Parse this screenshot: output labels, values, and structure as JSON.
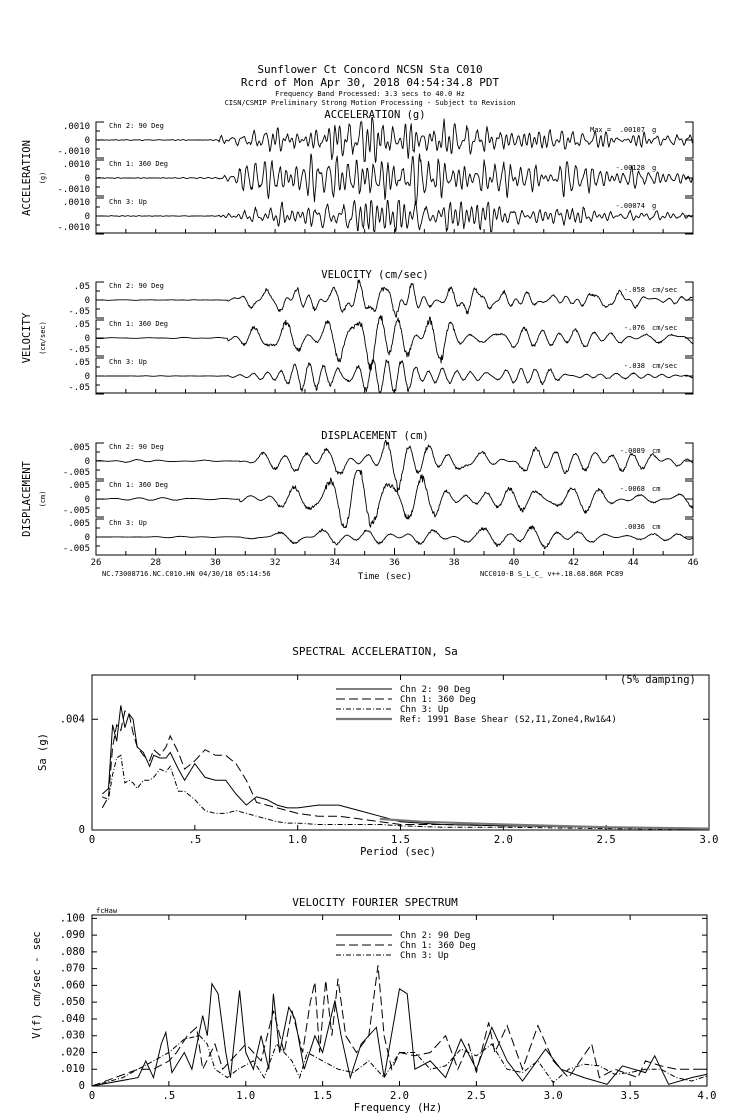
{
  "header": {
    "line1": "Sunflower Ct Concord    NCSN Sta C010",
    "line2": "Rcrd of Mon Apr 30, 2018 04:54:34.8 PDT",
    "line3": "Frequency Band Processed: 3.3 secs to 40.0 Hz",
    "line4": "CISN/CSMIP Preliminary Strong Motion Processing - Subject to Revision"
  },
  "time_axis": {
    "xlim": [
      26,
      46
    ],
    "tick_labels": [
      "26",
      "28",
      "30",
      "32",
      "34",
      "36",
      "38",
      "40",
      "42",
      "44",
      "46"
    ],
    "xlabel": "Time (sec)",
    "footer_left": "NC.73008716.NC.C010.HN 04/30/18 05:14:56",
    "footer_right": "NCC010-B  S_L_C_  v++.18.68.86R PC89"
  },
  "sections": [
    {
      "title": "ACCELERATION (g)",
      "ylabel": "ACCELERATION",
      "yunit": "(g)",
      "ticks": [
        ".0010",
        "0",
        "-.0010"
      ],
      "onset_sec": 30.1,
      "dominant_hz": 3.5,
      "channels": [
        {
          "label": "Chn 2: 90 Deg",
          "max_prefix": "Max =",
          "peak": ".00107",
          "unit": "g",
          "amp": 1.07
        },
        {
          "label": "Chn 1: 360 Deg",
          "max_prefix": "",
          "peak": "-.00128",
          "unit": "g",
          "amp": 1.28
        },
        {
          "label": "Chn 3: Up",
          "max_prefix": "",
          "peak": "-.00074",
          "unit": "g",
          "amp": 0.74
        }
      ]
    },
    {
      "title": "VELOCITY (cm/sec)",
      "ylabel": "VELOCITY",
      "yunit": "(cm/sec)",
      "ticks": [
        ".05",
        "0",
        "-.05"
      ],
      "onset_sec": 30.4,
      "dominant_hz": 1.6,
      "channels": [
        {
          "label": "Chn 2: 90 Deg",
          "max_prefix": "",
          "peak": "-.058",
          "unit": "cm/sec",
          "amp": 1.16
        },
        {
          "label": "Chn 1: 360 Deg",
          "max_prefix": "",
          "peak": "-.076",
          "unit": "cm/sec",
          "amp": 1.52
        },
        {
          "label": "Chn 3: Up",
          "max_prefix": "",
          "peak": "-.038",
          "unit": "cm/sec",
          "amp": 0.76
        }
      ]
    },
    {
      "title": "DISPLACEMENT (cm)",
      "ylabel": "DISPLACEMENT",
      "yunit": "(cm)",
      "ticks": [
        ".005",
        "0",
        "-.005"
      ],
      "onset_sec": 30.8,
      "dominant_hz": 0.9,
      "channels": [
        {
          "label": "Chn 2: 90 Deg",
          "max_prefix": "",
          "peak": "-.0089",
          "unit": "cm",
          "amp": 1.78
        },
        {
          "label": "Chn 1: 360 Deg",
          "max_prefix": "",
          "peak": "-.0068",
          "unit": "cm",
          "amp": 1.36
        },
        {
          "label": "Chn 3: Up",
          "max_prefix": "",
          "peak": ".0036",
          "unit": "cm",
          "amp": 0.72
        }
      ]
    }
  ],
  "chart_data": [
    {
      "type": "line",
      "title": "SPECTRAL ACCELERATION, Sa",
      "xlabel": "Period (sec)",
      "ylabel": "Sa (g)",
      "annotation": "(5% damping)",
      "xlim": [
        0,
        3.0
      ],
      "ylim": [
        0,
        0.0056
      ],
      "x_tick_labels": [
        "0",
        ".5",
        "1.0",
        "1.5",
        "2.0",
        "2.5",
        "3.0"
      ],
      "x_ticks": [
        0,
        0.5,
        1.0,
        1.5,
        2.0,
        2.5,
        3.0
      ],
      "y_tick_labels": [
        "0",
        ".004"
      ],
      "y_ticks": [
        0,
        0.004
      ],
      "legend_position": "top-center",
      "x": [
        0.05,
        0.08,
        0.1,
        0.12,
        0.14,
        0.16,
        0.18,
        0.2,
        0.22,
        0.25,
        0.28,
        0.3,
        0.33,
        0.36,
        0.38,
        0.42,
        0.45,
        0.5,
        0.55,
        0.6,
        0.65,
        0.7,
        0.75,
        0.8,
        0.85,
        0.9,
        0.95,
        1.0,
        1.1,
        1.2,
        1.3,
        1.4,
        1.5,
        1.7,
        2.0,
        2.5,
        3.0
      ],
      "series": [
        {
          "name": "Chn 2: 90 Deg",
          "style": "solid",
          "values": [
            0.0013,
            0.0015,
            0.0038,
            0.0032,
            0.0045,
            0.0037,
            0.0042,
            0.004,
            0.003,
            0.0028,
            0.0023,
            0.0027,
            0.0026,
            0.0026,
            0.0028,
            0.0022,
            0.0018,
            0.0024,
            0.0019,
            0.0018,
            0.0018,
            0.0013,
            0.0009,
            0.0012,
            0.0011,
            0.0009,
            0.0008,
            0.0008,
            0.0009,
            0.0009,
            0.0007,
            0.0005,
            0.0003,
            0.0002,
            0.00015,
            0.0001,
            5e-05
          ]
        },
        {
          "name": "Chn 1: 360 Deg",
          "style": "dashed",
          "values": [
            0.0008,
            0.0012,
            0.003,
            0.0038,
            0.0036,
            0.0043,
            0.0042,
            0.0035,
            0.003,
            0.0027,
            0.0025,
            0.0029,
            0.0027,
            0.003,
            0.0034,
            0.0028,
            0.0022,
            0.0025,
            0.0029,
            0.0027,
            0.0027,
            0.0024,
            0.0018,
            0.001,
            0.0009,
            0.0008,
            0.0007,
            0.0006,
            0.0005,
            0.0005,
            0.0004,
            0.0003,
            0.0002,
            0.0002,
            0.00015,
            0.0001,
            3e-05
          ]
        },
        {
          "name": "Chn 3: Up",
          "style": "dashdot",
          "values": [
            0.0012,
            0.0011,
            0.002,
            0.0026,
            0.0027,
            0.0017,
            0.0018,
            0.0017,
            0.0015,
            0.0018,
            0.0018,
            0.0019,
            0.0022,
            0.0021,
            0.0023,
            0.0014,
            0.0014,
            0.0011,
            0.0007,
            0.0006,
            0.0006,
            0.0007,
            0.0006,
            0.0005,
            0.0004,
            0.0003,
            0.00025,
            0.00025,
            0.0002,
            0.0002,
            0.0002,
            0.0002,
            0.00015,
            0.0001,
            0.0001,
            5e-05,
            2e-05
          ]
        },
        {
          "name": "Ref: 1991 Base Shear (S2,I1,Zone4,Rw1&4)",
          "style": "thick-gray",
          "x": [
            1.4,
            1.6,
            2.0,
            2.5,
            3.0
          ],
          "values": [
            0.0004,
            0.0003,
            0.0002,
            0.0001,
            5e-05
          ]
        }
      ]
    },
    {
      "type": "line",
      "title": "VELOCITY FOURIER SPECTRUM",
      "corner_label": "fcHaw",
      "xlabel": "Frequency (Hz)",
      "ylabel": "V(f)   cm/sec - sec",
      "xlim": [
        0,
        4.0
      ],
      "ylim": [
        0,
        0.102
      ],
      "x_tick_labels": [
        "0",
        ".5",
        "1.0",
        "1.5",
        "2.0",
        "2.5",
        "3.0",
        "3.5",
        "4.0"
      ],
      "x_ticks": [
        0,
        0.5,
        1.0,
        1.5,
        2.0,
        2.5,
        3.0,
        3.5,
        4.0
      ],
      "y_tick_labels": [
        "0",
        ".010",
        ".020",
        ".030",
        ".040",
        ".050",
        ".060",
        ".070",
        ".080",
        ".090",
        ".100"
      ],
      "y_ticks": [
        0,
        0.01,
        0.02,
        0.03,
        0.04,
        0.05,
        0.06,
        0.07,
        0.08,
        0.09,
        0.1
      ],
      "legend_position": "top-center",
      "series": [
        {
          "name": "Chn 2: 90 Deg",
          "style": "solid",
          "points": [
            [
              0,
              0
            ],
            [
              0.3,
              0.005
            ],
            [
              0.35,
              0.015
            ],
            [
              0.4,
              0.005
            ],
            [
              0.45,
              0.025
            ],
            [
              0.48,
              0.032
            ],
            [
              0.52,
              0.008
            ],
            [
              0.6,
              0.02
            ],
            [
              0.65,
              0.01
            ],
            [
              0.72,
              0.042
            ],
            [
              0.75,
              0.03
            ],
            [
              0.78,
              0.061
            ],
            [
              0.82,
              0.055
            ],
            [
              0.87,
              0.02
            ],
            [
              0.9,
              0.005
            ],
            [
              0.96,
              0.057
            ],
            [
              1.0,
              0.02
            ],
            [
              1.05,
              0.01
            ],
            [
              1.1,
              0.03
            ],
            [
              1.15,
              0.01
            ],
            [
              1.18,
              0.055
            ],
            [
              1.22,
              0.02
            ],
            [
              1.28,
              0.047
            ],
            [
              1.32,
              0.04
            ],
            [
              1.38,
              0.01
            ],
            [
              1.45,
              0.03
            ],
            [
              1.5,
              0.02
            ],
            [
              1.58,
              0.051
            ],
            [
              1.62,
              0.03
            ],
            [
              1.68,
              0.005
            ],
            [
              1.75,
              0.025
            ],
            [
              1.85,
              0.035
            ],
            [
              1.9,
              0.005
            ],
            [
              2.0,
              0.058
            ],
            [
              2.05,
              0.055
            ],
            [
              2.1,
              0.01
            ],
            [
              2.2,
              0.015
            ],
            [
              2.3,
              0.005
            ],
            [
              2.4,
              0.028
            ],
            [
              2.5,
              0.01
            ],
            [
              2.6,
              0.035
            ],
            [
              2.7,
              0.015
            ],
            [
              2.8,
              0.003
            ],
            [
              2.95,
              0.022
            ],
            [
              3.05,
              0.01
            ],
            [
              3.2,
              0.005
            ],
            [
              3.35,
              0.001
            ],
            [
              3.45,
              0.012
            ],
            [
              3.6,
              0.008
            ],
            [
              3.66,
              0.018
            ],
            [
              3.75,
              0.001
            ],
            [
              3.9,
              0.005
            ],
            [
              4.0,
              0.007
            ]
          ]
        },
        {
          "name": "Chn 1: 360 Deg",
          "style": "dashed",
          "points": [
            [
              0,
              0
            ],
            [
              0.3,
              0.01
            ],
            [
              0.4,
              0.01
            ],
            [
              0.5,
              0.015
            ],
            [
              0.55,
              0.02
            ],
            [
              0.62,
              0.03
            ],
            [
              0.68,
              0.035
            ],
            [
              0.72,
              0.01
            ],
            [
              0.8,
              0.025
            ],
            [
              0.85,
              0.01
            ],
            [
              0.95,
              0.02
            ],
            [
              1.0,
              0.025
            ],
            [
              1.1,
              0.015
            ],
            [
              1.18,
              0.045
            ],
            [
              1.25,
              0.02
            ],
            [
              1.3,
              0.045
            ],
            [
              1.37,
              0.02
            ],
            [
              1.42,
              0.05
            ],
            [
              1.45,
              0.062
            ],
            [
              1.48,
              0.02
            ],
            [
              1.52,
              0.063
            ],
            [
              1.56,
              0.03
            ],
            [
              1.6,
              0.064
            ],
            [
              1.65,
              0.03
            ],
            [
              1.72,
              0.02
            ],
            [
              1.8,
              0.03
            ],
            [
              1.86,
              0.072
            ],
            [
              1.9,
              0.03
            ],
            [
              1.95,
              0.01
            ],
            [
              2.0,
              0.02
            ],
            [
              2.1,
              0.018
            ],
            [
              2.2,
              0.02
            ],
            [
              2.3,
              0.03
            ],
            [
              2.38,
              0.01
            ],
            [
              2.45,
              0.025
            ],
            [
              2.5,
              0.008
            ],
            [
              2.58,
              0.038
            ],
            [
              2.62,
              0.02
            ],
            [
              2.7,
              0.036
            ],
            [
              2.8,
              0.01
            ],
            [
              2.9,
              0.036
            ],
            [
              3.0,
              0.015
            ],
            [
              3.1,
              0.005
            ],
            [
              3.25,
              0.025
            ],
            [
              3.3,
              0.005
            ],
            [
              3.4,
              0.01
            ],
            [
              3.55,
              0.005
            ],
            [
              3.6,
              0.015
            ],
            [
              3.7,
              0.012
            ],
            [
              3.8,
              0.01
            ],
            [
              4.0,
              0.01
            ]
          ]
        },
        {
          "name": "Chn 3: Up",
          "style": "dashdot",
          "points": [
            [
              0,
              0
            ],
            [
              0.2,
              0.005
            ],
            [
              0.3,
              0.01
            ],
            [
              0.4,
              0.015
            ],
            [
              0.5,
              0.02
            ],
            [
              0.6,
              0.028
            ],
            [
              0.7,
              0.03
            ],
            [
              0.75,
              0.025
            ],
            [
              0.8,
              0.01
            ],
            [
              0.88,
              0.005
            ],
            [
              0.95,
              0.01
            ],
            [
              1.05,
              0.015
            ],
            [
              1.12,
              0.005
            ],
            [
              1.2,
              0.025
            ],
            [
              1.3,
              0.015
            ],
            [
              1.35,
              0.005
            ],
            [
              1.4,
              0.02
            ],
            [
              1.5,
              0.015
            ],
            [
              1.6,
              0.01
            ],
            [
              1.7,
              0.008
            ],
            [
              1.8,
              0.015
            ],
            [
              1.9,
              0.005
            ],
            [
              2.0,
              0.02
            ],
            [
              2.1,
              0.02
            ],
            [
              2.2,
              0.01
            ],
            [
              2.3,
              0.012
            ],
            [
              2.4,
              0.022
            ],
            [
              2.5,
              0.018
            ],
            [
              2.6,
              0.025
            ],
            [
              2.7,
              0.01
            ],
            [
              2.8,
              0.008
            ],
            [
              2.9,
              0.015
            ],
            [
              3.0,
              0.002
            ],
            [
              3.1,
              0.01
            ],
            [
              3.2,
              0.013
            ],
            [
              3.3,
              0.012
            ],
            [
              3.4,
              0.007
            ],
            [
              3.5,
              0.008
            ],
            [
              3.6,
              0.01
            ],
            [
              3.7,
              0.01
            ],
            [
              3.8,
              0.005
            ],
            [
              3.9,
              0.003
            ],
            [
              4.0,
              0.006
            ]
          ]
        }
      ]
    }
  ]
}
